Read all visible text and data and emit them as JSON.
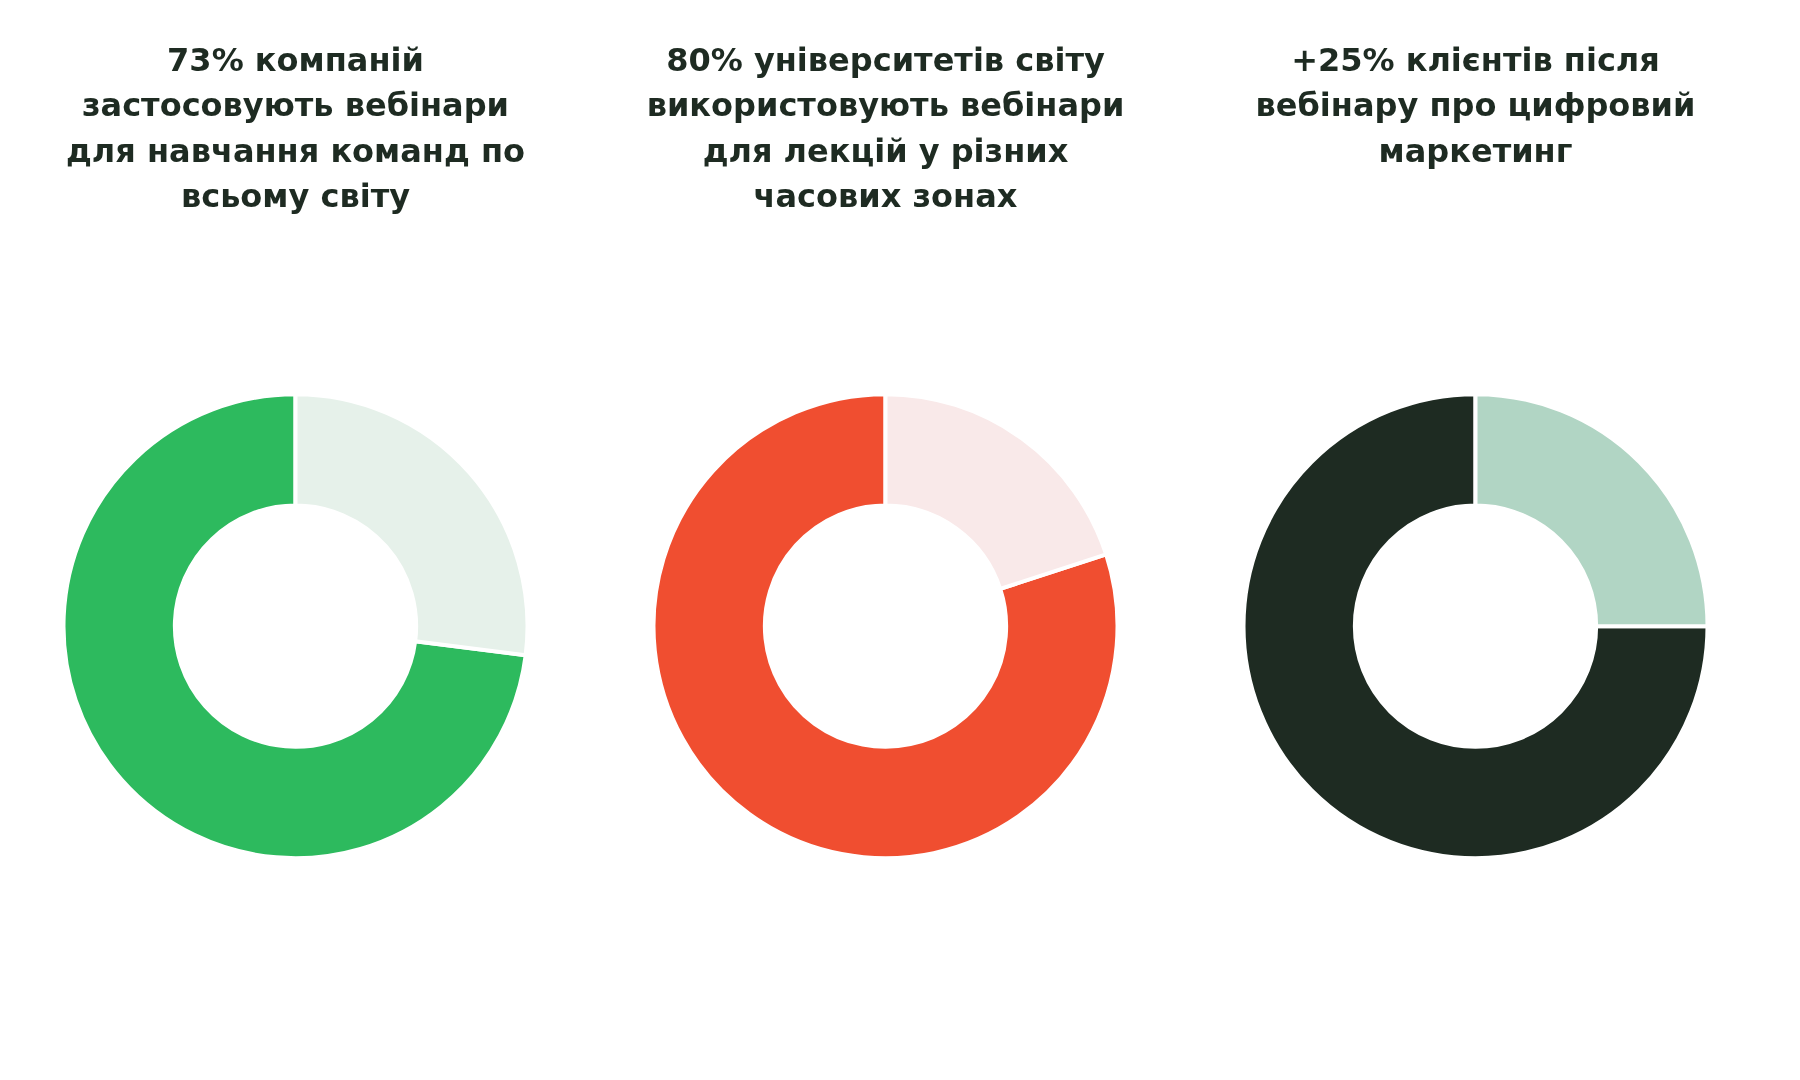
{
  "chart_data": [
    {
      "type": "donut",
      "title": "73% компаній застосовують вебінари для навчання команд по всьому світу",
      "categories": [
        null,
        null
      ],
      "values": [
        73,
        27
      ],
      "colors": [
        "#2dba5e",
        "#e6f1ea"
      ]
    },
    {
      "type": "donut",
      "title": "80% університетів світу використовують вебінари для лекцій у різних часових зонах",
      "categories": [
        null,
        null
      ],
      "values": [
        80,
        20
      ],
      "colors": [
        "#f04e30",
        "#f9e9e9"
      ]
    },
    {
      "type": "donut",
      "title": "+25% клієнтів після вебінару про цифровий маркетинг",
      "categories": [
        null,
        null
      ],
      "values": [
        75,
        25
      ],
      "colors": [
        "#1e2b22",
        "#b1d5c4"
      ]
    }
  ]
}
